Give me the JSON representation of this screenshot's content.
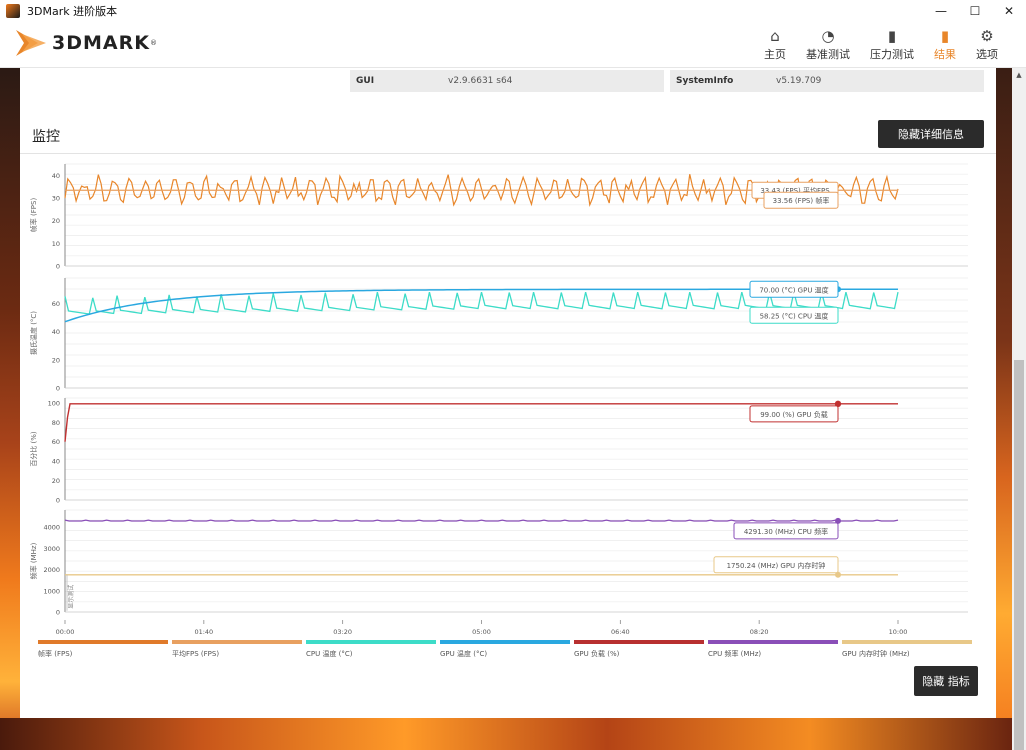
{
  "window": {
    "title": "3DMark 进阶版本",
    "min": "—",
    "max": "☐",
    "close": "✕"
  },
  "brand": {
    "name": "3DMARK",
    "reg": "®"
  },
  "nav": [
    {
      "label": "主页",
      "icon": "home-icon",
      "glyph": "⌂",
      "active": false
    },
    {
      "label": "基准测试",
      "icon": "gauge-icon",
      "glyph": "◔",
      "active": false
    },
    {
      "label": "压力测试",
      "icon": "bars-icon",
      "glyph": "▮",
      "active": false
    },
    {
      "label": "结果",
      "icon": "chart-icon",
      "glyph": "▮",
      "active": true
    },
    {
      "label": "选项",
      "icon": "gear-icon",
      "glyph": "⚙",
      "active": false
    }
  ],
  "info": {
    "gui_label": "GUI",
    "gui_value": "v2.9.6631 s64",
    "sysinfo_label": "SystemInfo",
    "sysinfo_value": "v5.19.709"
  },
  "monitor": {
    "title": "监控",
    "hide_details": "隐藏详细信息",
    "hide_metrics": "隐藏 指标"
  },
  "colors": {
    "fps": "#e8862a",
    "avg_fps": "#e8a060",
    "cpu_temp": "#3ddcc8",
    "gpu_temp": "#2aa8e0",
    "gpu_load": "#c03030",
    "cpu_clock": "#8a4fb8",
    "gpu_mem_clock": "#e8c888"
  },
  "chart_data": [
    {
      "type": "line",
      "ylabel": "帧率 (FPS)",
      "ylim": [
        0,
        45
      ],
      "yticks": [
        0,
        10,
        20,
        30,
        40
      ],
      "series": [
        {
          "name": "帧率 (FPS)",
          "pattern": "oscillating",
          "min": 27,
          "max": 41
        },
        {
          "name": "平均FPS (FPS)",
          "value": 33.43
        }
      ],
      "annotations": [
        "33.43 (FPS) 平均FPS",
        "33.56 (FPS) 帧率"
      ]
    },
    {
      "type": "line",
      "ylabel": "摄氏温度 (°C)",
      "ylim": [
        0,
        78
      ],
      "yticks": [
        0,
        20,
        40,
        60
      ],
      "series": [
        {
          "name": "GPU 温度 (°C)",
          "start": 47,
          "end": 70
        },
        {
          "name": "CPU 温度 (°C)",
          "min": 50,
          "max": 68
        }
      ],
      "annotations": [
        "70.00 (°C) GPU 温度",
        "58.25 (°C) CPU 温度"
      ]
    },
    {
      "type": "line",
      "ylabel": "百分比 (%)",
      "ylim": [
        0,
        105
      ],
      "yticks": [
        0,
        20,
        40,
        60,
        80,
        100
      ],
      "series": [
        {
          "name": "GPU 负载 (%)",
          "start": 60,
          "value": 99
        }
      ],
      "annotations": [
        "99.00 (%) GPU 负载"
      ]
    },
    {
      "type": "line",
      "ylabel": "频率 (MHz)",
      "ylim": [
        0,
        4800
      ],
      "yticks": [
        0,
        1000,
        2000,
        3000,
        4000
      ],
      "series": [
        {
          "name": "CPU 频率 (MHz)",
          "value": 4291.3
        },
        {
          "name": "GPU 内存时钟 (MHz)",
          "value": 1750.24
        }
      ],
      "annotations": [
        "4291.30 (MHz) CPU 频率",
        "1750.24 (MHz) GPU 内存时钟"
      ],
      "marker": "显示测试"
    }
  ],
  "x_ticks": [
    "00:00",
    "01:40",
    "03:20",
    "05:00",
    "06:40",
    "08:20",
    "10:00"
  ],
  "legend": [
    {
      "label": "帧率 (FPS)",
      "color": "#e07a2a"
    },
    {
      "label": "平均FPS (FPS)",
      "color": "#e8a060"
    },
    {
      "label": "CPU 温度 (°C)",
      "color": "#3ddcc8"
    },
    {
      "label": "GPU 温度 (°C)",
      "color": "#2aa8e0"
    },
    {
      "label": "GPU 负载 (%)",
      "color": "#b83030"
    },
    {
      "label": "CPU 频率 (MHz)",
      "color": "#8a4fb8"
    },
    {
      "label": "GPU 内存时钟 (MHz)",
      "color": "#e8c888"
    }
  ]
}
